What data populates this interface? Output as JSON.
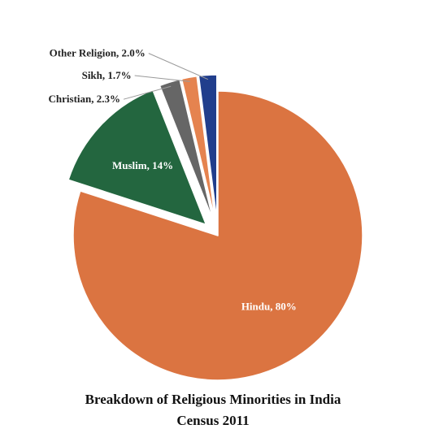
{
  "chart_data": {
    "type": "pie",
    "title_lines": [
      "Breakdown of Religious Minorities in India",
      "Census 2011"
    ],
    "slices": [
      {
        "name": "Hindu",
        "value": 80,
        "label": "Hindu, 80%",
        "color": "#DB7441",
        "exploded": false
      },
      {
        "name": "Muslim",
        "value": 14,
        "label": "Muslim, 14%",
        "color": "#23663F",
        "exploded": true
      },
      {
        "name": "Christian",
        "value": 2.3,
        "label": "Christian, 2.3%",
        "color": "#666666",
        "exploded": true
      },
      {
        "name": "Sikh",
        "value": 1.7,
        "label": "Sikh, 1.7%",
        "color": "#E5834F",
        "exploded": true
      },
      {
        "name": "Other Religion",
        "value": 2.0,
        "label": "Other Religion, 2.0%",
        "color": "#213E8C",
        "exploded": true
      }
    ],
    "label_colors": {
      "inside": "#ffffff",
      "outside": "#222222",
      "leader": "#9a9a9a"
    }
  }
}
